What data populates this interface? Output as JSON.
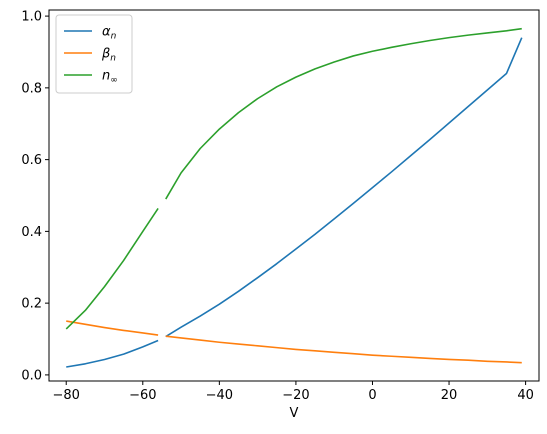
{
  "chart_data": {
    "type": "line",
    "title": "",
    "xlabel": "V",
    "ylabel": "",
    "xlim": [
      -84.5,
      43.5
    ],
    "ylim": [
      -0.017,
      1.017
    ],
    "xticks": [
      -80,
      -60,
      -40,
      -20,
      0,
      20,
      40
    ],
    "yticks": [
      0.0,
      0.2,
      0.4,
      0.6,
      0.8,
      1.0
    ],
    "xtick_labels": [
      "−80",
      "−60",
      "−40",
      "−20",
      "0",
      "20",
      "40"
    ],
    "ytick_labels": [
      "0.0",
      "0.2",
      "0.4",
      "0.6",
      "0.8",
      "1.0"
    ],
    "grid": false,
    "legend_position": "top-left",
    "series": [
      {
        "name": "αn",
        "label_base": "α",
        "label_sub": "n",
        "color": "#1f77b4",
        "segments": [
          {
            "x": [
              -80,
              -75,
              -70,
              -65,
              -60,
              -56
            ],
            "y": [
              0.022,
              0.031,
              0.043,
              0.058,
              0.078,
              0.096
            ]
          },
          {
            "x": [
              -54,
              -50,
              -45,
              -40,
              -35,
              -30,
              -25,
              -20,
              -15,
              -10,
              -5,
              0,
              5,
              10,
              15,
              20,
              25,
              30,
              35,
              39
            ],
            "y": [
              0.107,
              0.133,
              0.164,
              0.197,
              0.233,
              0.271,
              0.31,
              0.351,
              0.392,
              0.435,
              0.478,
              0.522,
              0.566,
              0.611,
              0.656,
              0.702,
              0.748,
              0.794,
              0.84,
              0.94
            ]
          }
        ]
      },
      {
        "name": "βn",
        "label_base": "β",
        "label_sub": "n",
        "color": "#ff7f0e",
        "segments": [
          {
            "x": [
              -80,
              -75,
              -70,
              -65,
              -60,
              -56
            ],
            "y": [
              0.15,
              0.141,
              0.132,
              0.124,
              0.117,
              0.111
            ]
          },
          {
            "x": [
              -54,
              -50,
              -45,
              -40,
              -35,
              -30,
              -25,
              -20,
              -15,
              -10,
              -5,
              0,
              5,
              10,
              15,
              20,
              25,
              30,
              35,
              39
            ],
            "y": [
              0.108,
              0.103,
              0.097,
              0.091,
              0.086,
              0.081,
              0.076,
              0.071,
              0.067,
              0.063,
              0.059,
              0.055,
              0.052,
              0.049,
              0.046,
              0.043,
              0.041,
              0.038,
              0.036,
              0.034
            ]
          }
        ]
      },
      {
        "name": "n∞",
        "label_base": "n",
        "label_sub": "∞",
        "color": "#2ca02c",
        "segments": [
          {
            "x": [
              -80,
              -75,
              -70,
              -65,
              -60,
              -56
            ],
            "y": [
              0.128,
              0.18,
              0.246,
              0.319,
              0.4,
              0.464
            ]
          },
          {
            "x": [
              -54,
              -50,
              -45,
              -40,
              -35,
              -30,
              -25,
              -20,
              -15,
              -10,
              -5,
              0,
              5,
              10,
              15,
              20,
              25,
              30,
              35,
              39
            ],
            "y": [
              0.49,
              0.563,
              0.631,
              0.685,
              0.731,
              0.77,
              0.803,
              0.83,
              0.853,
              0.872,
              0.889,
              0.902,
              0.913,
              0.923,
              0.932,
              0.94,
              0.947,
              0.953,
              0.959,
              0.965
            ]
          }
        ]
      }
    ]
  }
}
